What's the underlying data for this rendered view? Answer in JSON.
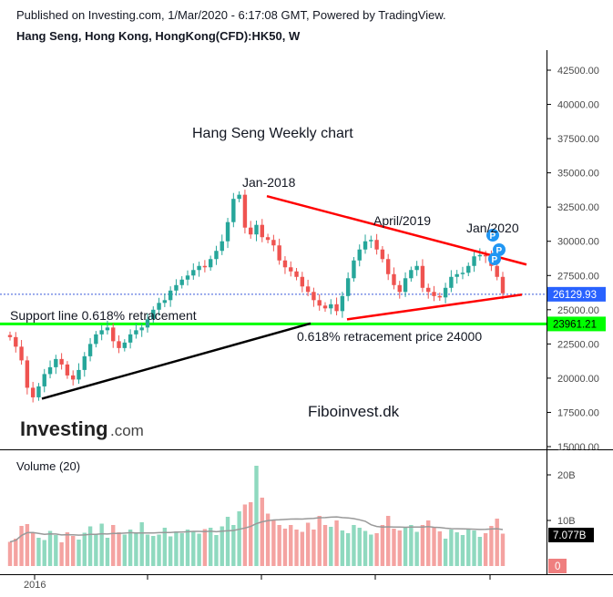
{
  "header": {
    "published": "Published on Investing.com, 1/Mar/2020 - 6:17:08 GMT, Powered by TradingView.",
    "symbol": "Hang Seng, Hong Kong, HongKong(CFD):HK50, W"
  },
  "annotations": {
    "chart_title": "Hang Seng Weekly chart",
    "jan2018": "Jan-2018",
    "april2019": "April/2019",
    "jan2020": "Jan/2020",
    "support_line": "Support line 0.618% retracement",
    "retracement_price": "0.618% retracement price 24000",
    "watermark": "Fiboinvest.dk",
    "event_marker": "P"
  },
  "logo": {
    "word": "Investing",
    "suffix": ".com"
  },
  "price_axis": {
    "ticks": [
      "42500.00",
      "40000.00",
      "37500.00",
      "35000.00",
      "32500.00",
      "30000.00",
      "27500.00",
      "25000.00",
      "22500.00",
      "20000.00",
      "17500.00",
      "15000.00"
    ],
    "last_price": "26129.93",
    "support_price": "23961.21"
  },
  "volume_panel": {
    "label": "Volume (20)",
    "ticks": [
      "20B",
      "10B",
      "0"
    ],
    "last_volume": "7.077B"
  },
  "time_axis": {
    "labels": [
      "2016"
    ]
  },
  "colors": {
    "up": "#26a69a",
    "down": "#ef5350",
    "vol_up": "#8fd9bf",
    "vol_down": "#f4a3a1",
    "trendline_red": "#ff0000",
    "support_green": "#00ff00",
    "marker_blue": "#2196f3"
  },
  "chart_data": [
    {
      "type": "candlestick",
      "title": "Hang Seng Weekly chart",
      "interval": "W",
      "ylim": [
        15000,
        45000
      ],
      "closes_approx": [
        23000,
        22300,
        21300,
        19300,
        18600,
        19400,
        20300,
        20800,
        21400,
        21000,
        20200,
        19900,
        20600,
        21600,
        22500,
        23200,
        23500,
        23700,
        22700,
        22200,
        22600,
        23200,
        23500,
        23700,
        24300,
        25000,
        25500,
        25700,
        26400,
        26800,
        27200,
        27500,
        27900,
        28200,
        28100,
        28700,
        29300,
        30000,
        31400,
        33100,
        33400,
        31000,
        30500,
        31200,
        30300,
        30100,
        29700,
        28600,
        28100,
        27800,
        27400,
        26700,
        26300,
        25700,
        25300,
        25100,
        25400,
        24900,
        26000,
        27300,
        28600,
        29400,
        30000,
        30100,
        29400,
        28700,
        27600,
        26800,
        26300,
        27300,
        27900,
        28200,
        26600,
        26300,
        26000,
        25900,
        26600,
        27400,
        27600,
        27700,
        28200,
        28900,
        29000,
        28900,
        28200,
        27400,
        26200
      ],
      "last": 26129.93,
      "horizontal_levels": [
        {
          "value": 23961.21,
          "label": "Support line 0.618% retracement"
        }
      ],
      "trendlines": [
        {
          "from": {
            "x": "2016-02",
            "y": 18500
          },
          "to": {
            "x": "2019-09",
            "y": 24000
          }
        },
        {
          "from": {
            "x": "2018-01",
            "y": 33300
          },
          "to": {
            "x": "2020-03",
            "y": 28300
          }
        },
        {
          "from": {
            "x": "2018-10",
            "y": 24300
          },
          "to": {
            "x": "2020-03",
            "y": 26100
          }
        }
      ]
    },
    {
      "type": "bar",
      "title": "Volume (20)",
      "ylim": [
        0,
        24
      ],
      "unit": "B",
      "values": [
        5.3,
        6.0,
        8.8,
        9.2,
        7.4,
        6.2,
        5.7,
        7.7,
        6.8,
        5.2,
        7.4,
        6.6,
        5.8,
        7.3,
        8.7,
        6.9,
        9.3,
        6.2,
        9.0,
        7.4,
        6.9,
        8.0,
        7.2,
        9.6,
        6.9,
        6.6,
        6.9,
        8.4,
        6.5,
        7.6,
        7.2,
        8.0,
        7.5,
        7.1,
        8.1,
        8.4,
        6.8,
        8.7,
        10.8,
        9.0,
        12.0,
        13.5,
        14.0,
        22.0,
        15.0,
        11.5,
        10.0,
        9.0,
        8.2,
        9.0,
        8.0,
        7.5,
        9.5,
        8.0,
        11.0,
        9.0,
        8.6,
        10.0,
        7.8,
        7.2,
        9.0,
        8.4,
        7.7,
        6.9,
        7.2,
        9.0,
        11.0,
        8.2,
        7.8,
        8.4,
        9.0,
        7.5,
        9.0,
        10.0,
        8.4,
        7.6,
        6.0,
        8.0,
        7.4,
        6.8,
        8.0,
        7.8,
        6.4,
        7.2,
        8.8,
        10.4,
        7.1
      ],
      "moving_average": 20,
      "last": 7.077
    }
  ]
}
